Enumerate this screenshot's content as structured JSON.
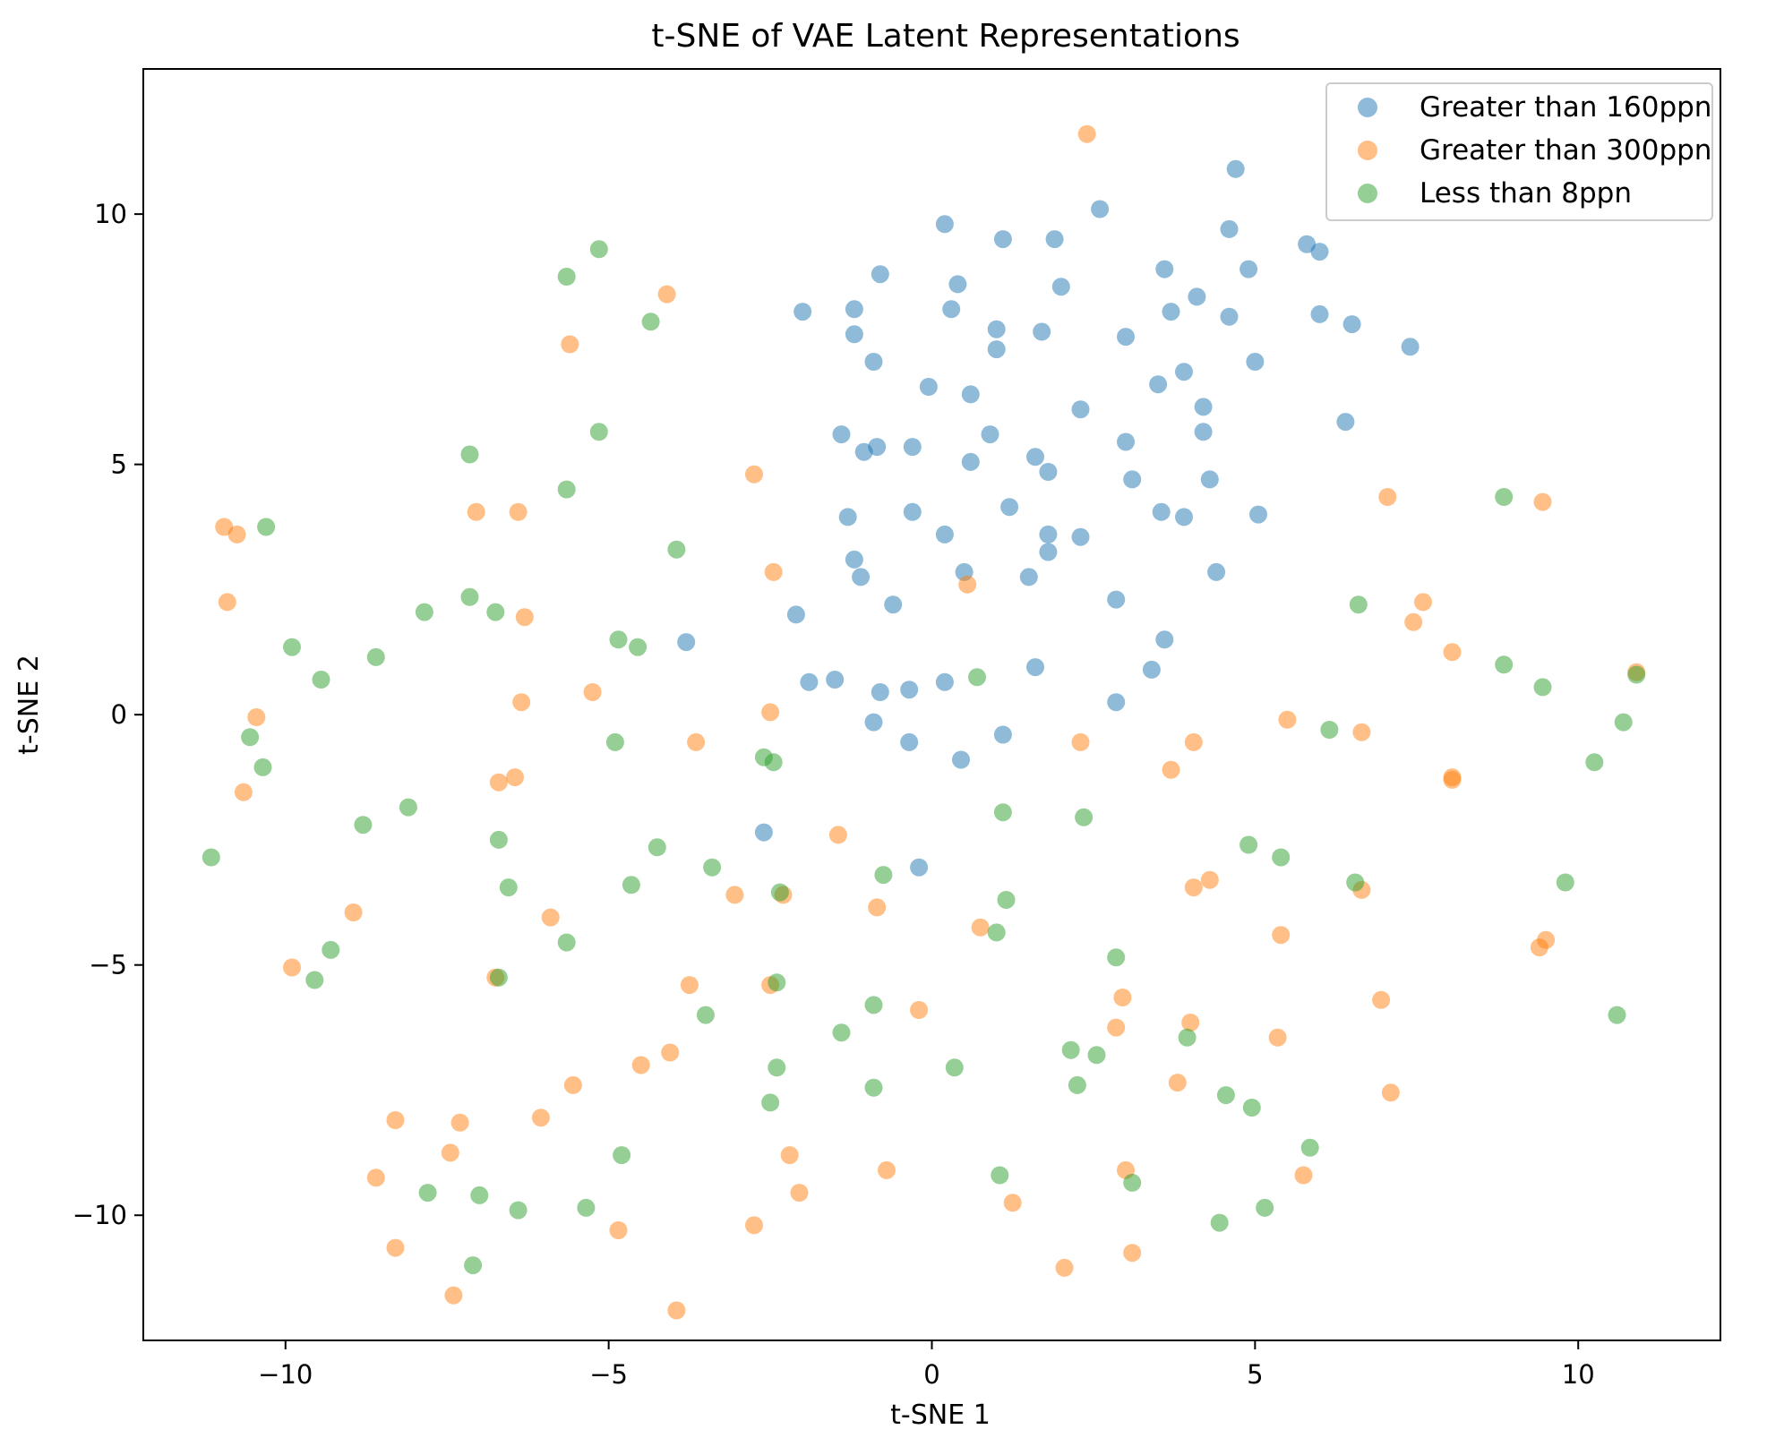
{
  "chart_data": {
    "type": "scatter",
    "title": "t-SNE of VAE Latent Representations",
    "xlabel": "t-SNE 1",
    "ylabel": "t-SNE 2",
    "xlim": [
      -12.2,
      12.2
    ],
    "ylim": [
      -12.5,
      12.9
    ],
    "xticks": [
      -10,
      -5,
      0,
      5,
      10
    ],
    "yticks": [
      -10,
      -5,
      0,
      5,
      10
    ],
    "xtick_labels": [
      "−10",
      "−5",
      "0",
      "5",
      "10"
    ],
    "ytick_labels": [
      "−10",
      "−5",
      "0",
      "5",
      "10"
    ],
    "grid": false,
    "legend_position": "top-right",
    "marker_alpha": 0.5,
    "series": [
      {
        "name": "Greater than 160ppn",
        "color": "#1f77b4",
        "points": [
          [
            4.7,
            10.9
          ],
          [
            2.6,
            10.1
          ],
          [
            0.2,
            9.8
          ],
          [
            1.1,
            9.5
          ],
          [
            1.9,
            9.5
          ],
          [
            4.6,
            9.7
          ],
          [
            5.8,
            9.4
          ],
          [
            6.0,
            9.25
          ],
          [
            4.9,
            8.9
          ],
          [
            3.6,
            8.9
          ],
          [
            -0.8,
            8.8
          ],
          [
            0.4,
            8.6
          ],
          [
            2.0,
            8.55
          ],
          [
            4.1,
            8.35
          ],
          [
            -2.0,
            8.05
          ],
          [
            -1.2,
            8.1
          ],
          [
            0.3,
            8.1
          ],
          [
            3.7,
            8.05
          ],
          [
            4.6,
            7.95
          ],
          [
            6.0,
            8.0
          ],
          [
            6.5,
            7.8
          ],
          [
            1.0,
            7.7
          ],
          [
            1.7,
            7.65
          ],
          [
            -1.2,
            7.6
          ],
          [
            3.0,
            7.55
          ],
          [
            7.4,
            7.35
          ],
          [
            1.0,
            7.3
          ],
          [
            -0.9,
            7.05
          ],
          [
            5.0,
            7.05
          ],
          [
            3.9,
            6.85
          ],
          [
            -0.05,
            6.55
          ],
          [
            3.5,
            6.6
          ],
          [
            0.6,
            6.4
          ],
          [
            2.3,
            6.1
          ],
          [
            4.2,
            6.15
          ],
          [
            6.4,
            5.85
          ],
          [
            4.2,
            5.65
          ],
          [
            -1.4,
            5.6
          ],
          [
            0.9,
            5.6
          ],
          [
            3.0,
            5.45
          ],
          [
            -1.05,
            5.25
          ],
          [
            -0.85,
            5.35
          ],
          [
            -0.3,
            5.35
          ],
          [
            0.6,
            5.05
          ],
          [
            1.6,
            5.15
          ],
          [
            1.8,
            4.85
          ],
          [
            3.1,
            4.7
          ],
          [
            4.3,
            4.7
          ],
          [
            1.2,
            4.15
          ],
          [
            -1.3,
            3.95
          ],
          [
            -0.3,
            4.05
          ],
          [
            3.55,
            4.05
          ],
          [
            3.9,
            3.95
          ],
          [
            5.05,
            4.0
          ],
          [
            0.2,
            3.6
          ],
          [
            1.8,
            3.6
          ],
          [
            2.3,
            3.55
          ],
          [
            -1.2,
            3.1
          ],
          [
            1.8,
            3.25
          ],
          [
            -1.1,
            2.75
          ],
          [
            0.5,
            2.85
          ],
          [
            1.5,
            2.75
          ],
          [
            4.4,
            2.85
          ],
          [
            -0.6,
            2.2
          ],
          [
            2.85,
            2.3
          ],
          [
            -2.1,
            2.0
          ],
          [
            -3.8,
            1.45
          ],
          [
            3.6,
            1.5
          ],
          [
            -1.5,
            0.7
          ],
          [
            -1.9,
            0.65
          ],
          [
            -0.8,
            0.45
          ],
          [
            -0.35,
            0.5
          ],
          [
            0.2,
            0.65
          ],
          [
            1.6,
            0.95
          ],
          [
            3.4,
            0.9
          ],
          [
            2.85,
            0.25
          ],
          [
            -0.9,
            -0.15
          ],
          [
            -0.35,
            -0.55
          ],
          [
            0.45,
            -0.9
          ],
          [
            1.1,
            -0.4
          ],
          [
            -2.6,
            -2.35
          ],
          [
            -0.2,
            -3.05
          ]
        ]
      },
      {
        "name": "Greater than 300ppn",
        "color": "#ff7f0e",
        "points": [
          [
            2.4,
            11.6
          ],
          [
            -4.1,
            8.4
          ],
          [
            -5.6,
            7.4
          ],
          [
            -2.75,
            4.8
          ],
          [
            7.05,
            4.35
          ],
          [
            9.45,
            4.25
          ],
          [
            -7.05,
            4.05
          ],
          [
            -6.4,
            4.05
          ],
          [
            -10.95,
            3.75
          ],
          [
            -10.75,
            3.6
          ],
          [
            -2.45,
            2.85
          ],
          [
            0.55,
            2.6
          ],
          [
            -10.9,
            2.25
          ],
          [
            -6.3,
            1.95
          ],
          [
            7.6,
            2.25
          ],
          [
            7.45,
            1.85
          ],
          [
            8.05,
            1.25
          ],
          [
            -5.25,
            0.45
          ],
          [
            -6.35,
            0.25
          ],
          [
            -2.5,
            0.05
          ],
          [
            -10.45,
            -0.05
          ],
          [
            5.5,
            -0.1
          ],
          [
            6.65,
            -0.35
          ],
          [
            -3.65,
            -0.55
          ],
          [
            2.3,
            -0.55
          ],
          [
            4.05,
            -0.55
          ],
          [
            -10.65,
            -1.55
          ],
          [
            -6.7,
            -1.35
          ],
          [
            -6.45,
            -1.25
          ],
          [
            3.7,
            -1.1
          ],
          [
            8.05,
            -1.25
          ],
          [
            8.05,
            -1.3
          ],
          [
            -1.45,
            -2.4
          ],
          [
            -3.05,
            -3.6
          ],
          [
            -2.3,
            -3.6
          ],
          [
            4.05,
            -3.45
          ],
          [
            4.3,
            -3.3
          ],
          [
            6.65,
            -3.5
          ],
          [
            -8.95,
            -3.95
          ],
          [
            -5.9,
            -4.05
          ],
          [
            -0.85,
            -3.85
          ],
          [
            0.75,
            -4.25
          ],
          [
            5.4,
            -4.4
          ],
          [
            9.4,
            -4.65
          ],
          [
            9.5,
            -4.5
          ],
          [
            -9.9,
            -5.05
          ],
          [
            -6.75,
            -5.25
          ],
          [
            -3.75,
            -5.4
          ],
          [
            -2.5,
            -5.4
          ],
          [
            2.95,
            -5.65
          ],
          [
            6.95,
            -5.7
          ],
          [
            -0.2,
            -5.9
          ],
          [
            2.85,
            -6.25
          ],
          [
            4.0,
            -6.15
          ],
          [
            5.35,
            -6.45
          ],
          [
            -4.05,
            -6.75
          ],
          [
            -4.5,
            -7.0
          ],
          [
            -5.55,
            -7.4
          ],
          [
            3.8,
            -7.35
          ],
          [
            7.1,
            -7.55
          ],
          [
            -6.05,
            -8.05
          ],
          [
            -8.3,
            -8.1
          ],
          [
            -7.3,
            -8.15
          ],
          [
            -7.45,
            -8.75
          ],
          [
            -2.2,
            -8.8
          ],
          [
            -8.6,
            -9.25
          ],
          [
            -0.7,
            -9.1
          ],
          [
            3.0,
            -9.1
          ],
          [
            5.75,
            -9.2
          ],
          [
            -2.05,
            -9.55
          ],
          [
            1.25,
            -9.75
          ],
          [
            -2.75,
            -10.2
          ],
          [
            -4.85,
            -10.3
          ],
          [
            -8.3,
            -10.65
          ],
          [
            3.1,
            -10.75
          ],
          [
            2.05,
            -11.05
          ],
          [
            -7.4,
            -11.6
          ],
          [
            -3.95,
            -11.9
          ],
          [
            10.9,
            0.85
          ]
        ]
      },
      {
        "name": "Less than 8ppn",
        "color": "#2ca02c",
        "points": [
          [
            -5.15,
            9.3
          ],
          [
            -5.65,
            8.75
          ],
          [
            -4.35,
            7.85
          ],
          [
            -5.15,
            5.65
          ],
          [
            -7.15,
            5.2
          ],
          [
            -5.65,
            4.5
          ],
          [
            8.85,
            4.35
          ],
          [
            -10.3,
            3.75
          ],
          [
            -3.95,
            3.3
          ],
          [
            -7.15,
            2.35
          ],
          [
            -7.85,
            2.05
          ],
          [
            -6.75,
            2.05
          ],
          [
            6.6,
            2.2
          ],
          [
            -4.85,
            1.5
          ],
          [
            -4.55,
            1.35
          ],
          [
            -9.9,
            1.35
          ],
          [
            -8.6,
            1.15
          ],
          [
            8.85,
            1.0
          ],
          [
            -9.45,
            0.7
          ],
          [
            0.7,
            0.75
          ],
          [
            10.9,
            0.8
          ],
          [
            9.45,
            0.55
          ],
          [
            -10.55,
            -0.45
          ],
          [
            6.15,
            -0.3
          ],
          [
            10.7,
            -0.15
          ],
          [
            -4.9,
            -0.55
          ],
          [
            -10.35,
            -1.05
          ],
          [
            -2.6,
            -0.85
          ],
          [
            -2.45,
            -0.95
          ],
          [
            10.25,
            -0.95
          ],
          [
            -8.1,
            -1.85
          ],
          [
            1.1,
            -1.95
          ],
          [
            -8.8,
            -2.2
          ],
          [
            2.35,
            -2.05
          ],
          [
            -11.15,
            -2.85
          ],
          [
            -6.7,
            -2.5
          ],
          [
            -4.25,
            -2.65
          ],
          [
            4.9,
            -2.6
          ],
          [
            5.4,
            -2.85
          ],
          [
            -3.4,
            -3.05
          ],
          [
            -0.75,
            -3.2
          ],
          [
            -6.55,
            -3.45
          ],
          [
            -4.65,
            -3.4
          ],
          [
            -2.35,
            -3.55
          ],
          [
            6.55,
            -3.35
          ],
          [
            9.8,
            -3.35
          ],
          [
            1.15,
            -3.7
          ],
          [
            -5.65,
            -4.55
          ],
          [
            -9.3,
            -4.7
          ],
          [
            1.0,
            -4.35
          ],
          [
            -9.55,
            -5.3
          ],
          [
            -6.7,
            -5.25
          ],
          [
            -2.4,
            -5.35
          ],
          [
            2.85,
            -4.85
          ],
          [
            -0.9,
            -5.8
          ],
          [
            -3.5,
            -6.0
          ],
          [
            10.6,
            -6.0
          ],
          [
            -1.4,
            -6.35
          ],
          [
            3.95,
            -6.45
          ],
          [
            2.15,
            -6.7
          ],
          [
            2.55,
            -6.8
          ],
          [
            -2.4,
            -7.05
          ],
          [
            0.35,
            -7.05
          ],
          [
            -0.9,
            -7.45
          ],
          [
            2.25,
            -7.4
          ],
          [
            4.55,
            -7.6
          ],
          [
            4.95,
            -7.85
          ],
          [
            -2.5,
            -7.75
          ],
          [
            -4.8,
            -8.8
          ],
          [
            5.85,
            -8.65
          ],
          [
            1.05,
            -9.2
          ],
          [
            3.1,
            -9.35
          ],
          [
            -7.8,
            -9.55
          ],
          [
            -7.0,
            -9.6
          ],
          [
            -6.4,
            -9.9
          ],
          [
            -5.35,
            -9.85
          ],
          [
            5.15,
            -9.85
          ],
          [
            4.45,
            -10.15
          ],
          [
            -7.1,
            -11.0
          ]
        ]
      }
    ]
  }
}
